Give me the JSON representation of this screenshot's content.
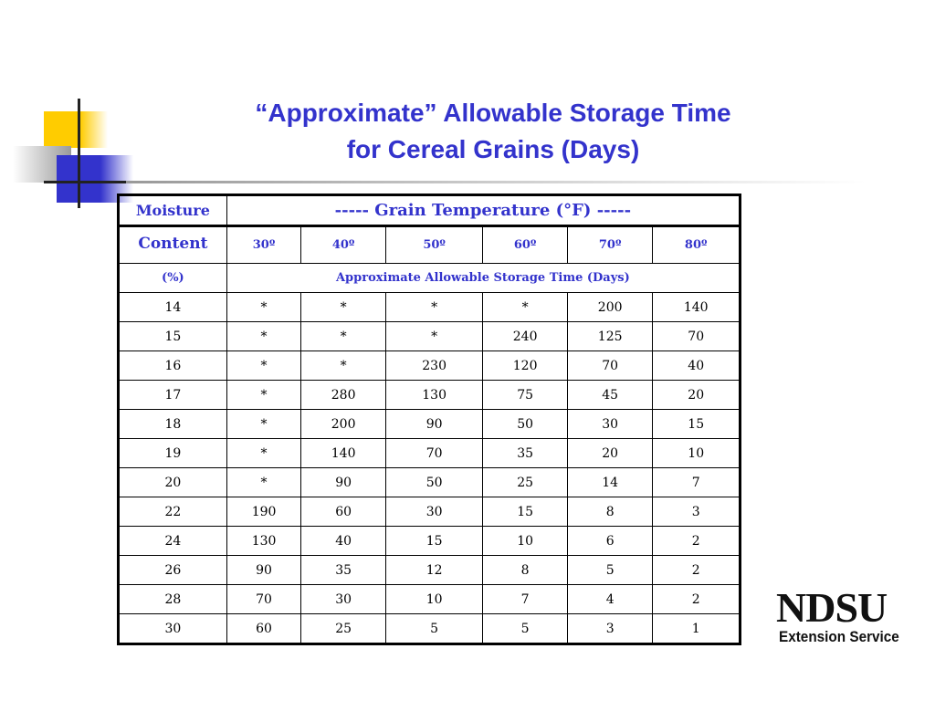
{
  "title": {
    "line1": "“Approximate” Allowable Storage Time",
    "line2": "for Cereal Grains (Days)"
  },
  "table": {
    "moisture_label": "Moisture",
    "content_label": "Content",
    "percent_label": "(%)",
    "temp_header": "-----  Grain Temperature (°F) -----",
    "sub_header": "Approximate Allowable Storage Time (Days)",
    "temperatures": [
      "30º",
      "40º",
      "50º",
      "60º",
      "70º",
      "80º"
    ],
    "rows": [
      [
        "14",
        "*",
        "*",
        "*",
        "*",
        "200",
        "140"
      ],
      [
        "15",
        "*",
        "*",
        "*",
        "240",
        "125",
        "70"
      ],
      [
        "16",
        "*",
        "*",
        "230",
        "120",
        "70",
        "40"
      ],
      [
        "17",
        "*",
        "280",
        "130",
        "75",
        "45",
        "20"
      ],
      [
        "18",
        "*",
        "200",
        "90",
        "50",
        "30",
        "15"
      ],
      [
        "19",
        "*",
        "140",
        "70",
        "35",
        "20",
        "10"
      ],
      [
        "20",
        "*",
        "90",
        "50",
        "25",
        "14",
        "7"
      ],
      [
        "22",
        "190",
        "60",
        "30",
        "15",
        "8",
        "3"
      ],
      [
        "24",
        "130",
        "40",
        "15",
        "10",
        "6",
        "2"
      ],
      [
        "26",
        "90",
        "35",
        "12",
        "8",
        "5",
        "2"
      ],
      [
        "28",
        "70",
        "30",
        "10",
        "7",
        "4",
        "2"
      ],
      [
        "30",
        "60",
        "25",
        "5",
        "5",
        "3",
        "1"
      ]
    ]
  },
  "logo": {
    "main": "NDSU",
    "sub": "Extension Service"
  },
  "colors": {
    "accent": "#3333cc",
    "yellow": "#ffcc00"
  }
}
